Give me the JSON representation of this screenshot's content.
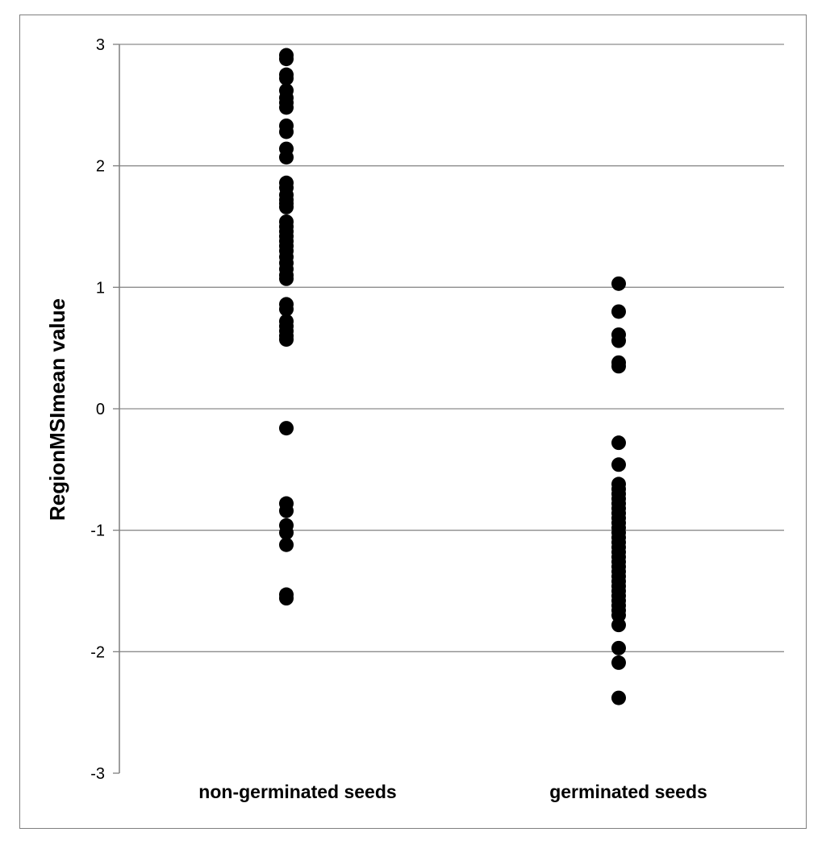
{
  "chart_data": {
    "type": "scatter",
    "title": "",
    "xlabel": "",
    "ylabel": "RegionMSImean value",
    "ylim": [
      -3,
      3
    ],
    "yticks": [
      3,
      2,
      1,
      0,
      -1,
      -2,
      -3
    ],
    "grid": true,
    "legend": "none",
    "marker_color": "#000000",
    "categories": [
      "non-germinated seeds",
      "germinated seeds"
    ],
    "series": [
      {
        "category": "non-germinated seeds",
        "values": [
          2.91,
          2.88,
          2.75,
          2.72,
          2.62,
          2.56,
          2.52,
          2.48,
          2.33,
          2.28,
          2.14,
          2.07,
          1.86,
          1.82,
          1.76,
          1.72,
          1.69,
          1.66,
          1.54,
          1.5,
          1.46,
          1.42,
          1.38,
          1.34,
          1.3,
          1.25,
          1.2,
          1.15,
          1.1,
          1.07,
          0.86,
          0.82,
          0.72,
          0.68,
          0.64,
          0.6,
          0.57,
          -0.16,
          -0.78,
          -0.84,
          -0.96,
          -1.02,
          -1.12,
          -1.53,
          -1.56
        ]
      },
      {
        "category": "germinated seeds",
        "values": [
          1.03,
          0.8,
          0.61,
          0.56,
          0.38,
          0.35,
          -0.28,
          -0.46,
          -0.62,
          -0.66,
          -0.7,
          -0.74,
          -0.78,
          -0.82,
          -0.86,
          -0.9,
          -0.94,
          -0.98,
          -1.02,
          -1.06,
          -1.1,
          -1.14,
          -1.18,
          -1.22,
          -1.26,
          -1.3,
          -1.34,
          -1.38,
          -1.42,
          -1.46,
          -1.5,
          -1.54,
          -1.58,
          -1.62,
          -1.66,
          -1.7,
          -1.78,
          -1.97,
          -2.09,
          -2.38
        ]
      }
    ]
  }
}
